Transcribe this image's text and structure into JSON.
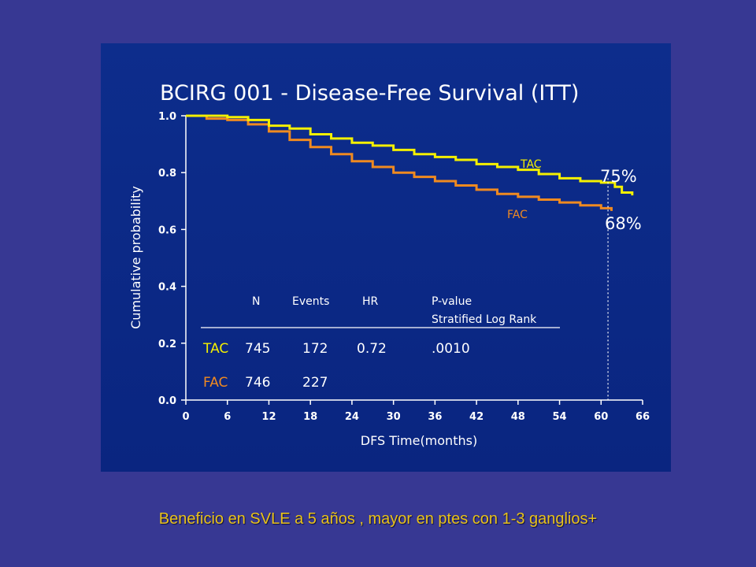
{
  "caption": "Beneficio en SVLE a 5 años , mayor en ptes con 1-3 ganglios+",
  "chart_data": {
    "type": "line",
    "title": "BCIRG 001 - Disease-Free Survival (ITT)",
    "xlabel": "DFS Time(months)",
    "ylabel": "Cumulative probability",
    "xlim": [
      0,
      66
    ],
    "ylim": [
      0,
      1.0
    ],
    "x_ticks": [
      "0",
      "6",
      "12",
      "18",
      "24",
      "30",
      "36",
      "42",
      "48",
      "54",
      "60",
      "66"
    ],
    "y_ticks": [
      "0.0",
      "0.2",
      "0.4",
      "0.6",
      "0.8",
      "1.0"
    ],
    "series": [
      {
        "name": "TAC",
        "color": "#f4f000",
        "end_label": "75%",
        "x": [
          0,
          6,
          9,
          12,
          15,
          18,
          21,
          24,
          27,
          30,
          33,
          36,
          39,
          42,
          45,
          48,
          51,
          54,
          57,
          60,
          62,
          63,
          64.5
        ],
        "y": [
          1.0,
          0.995,
          0.985,
          0.965,
          0.955,
          0.935,
          0.92,
          0.905,
          0.895,
          0.88,
          0.865,
          0.855,
          0.845,
          0.83,
          0.82,
          0.81,
          0.795,
          0.78,
          0.77,
          0.765,
          0.75,
          0.73,
          0.72
        ]
      },
      {
        "name": "FAC",
        "color": "#f08a20",
        "end_label": "68%",
        "x": [
          0,
          3,
          6,
          9,
          12,
          15,
          18,
          21,
          24,
          27,
          30,
          33,
          36,
          39,
          42,
          45,
          48,
          51,
          54,
          57,
          60,
          61.5
        ],
        "y": [
          1.0,
          0.99,
          0.985,
          0.97,
          0.945,
          0.915,
          0.89,
          0.865,
          0.84,
          0.82,
          0.8,
          0.785,
          0.77,
          0.755,
          0.74,
          0.725,
          0.715,
          0.705,
          0.695,
          0.685,
          0.675,
          0.665
        ]
      }
    ],
    "reference_line": {
      "x": 61,
      "style": "dotted"
    },
    "grid": false,
    "table": {
      "headers": [
        "N",
        "Events",
        "HR",
        "P-value",
        "Stratified Log Rank"
      ],
      "rows": [
        {
          "arm": "TAC",
          "n": "745",
          "events": "172",
          "hr": "0.72",
          "p": ".0010",
          "color": "#f4f000"
        },
        {
          "arm": "FAC",
          "n": "746",
          "events": "227",
          "hr": "",
          "p": "",
          "color": "#f08a20"
        }
      ]
    }
  }
}
